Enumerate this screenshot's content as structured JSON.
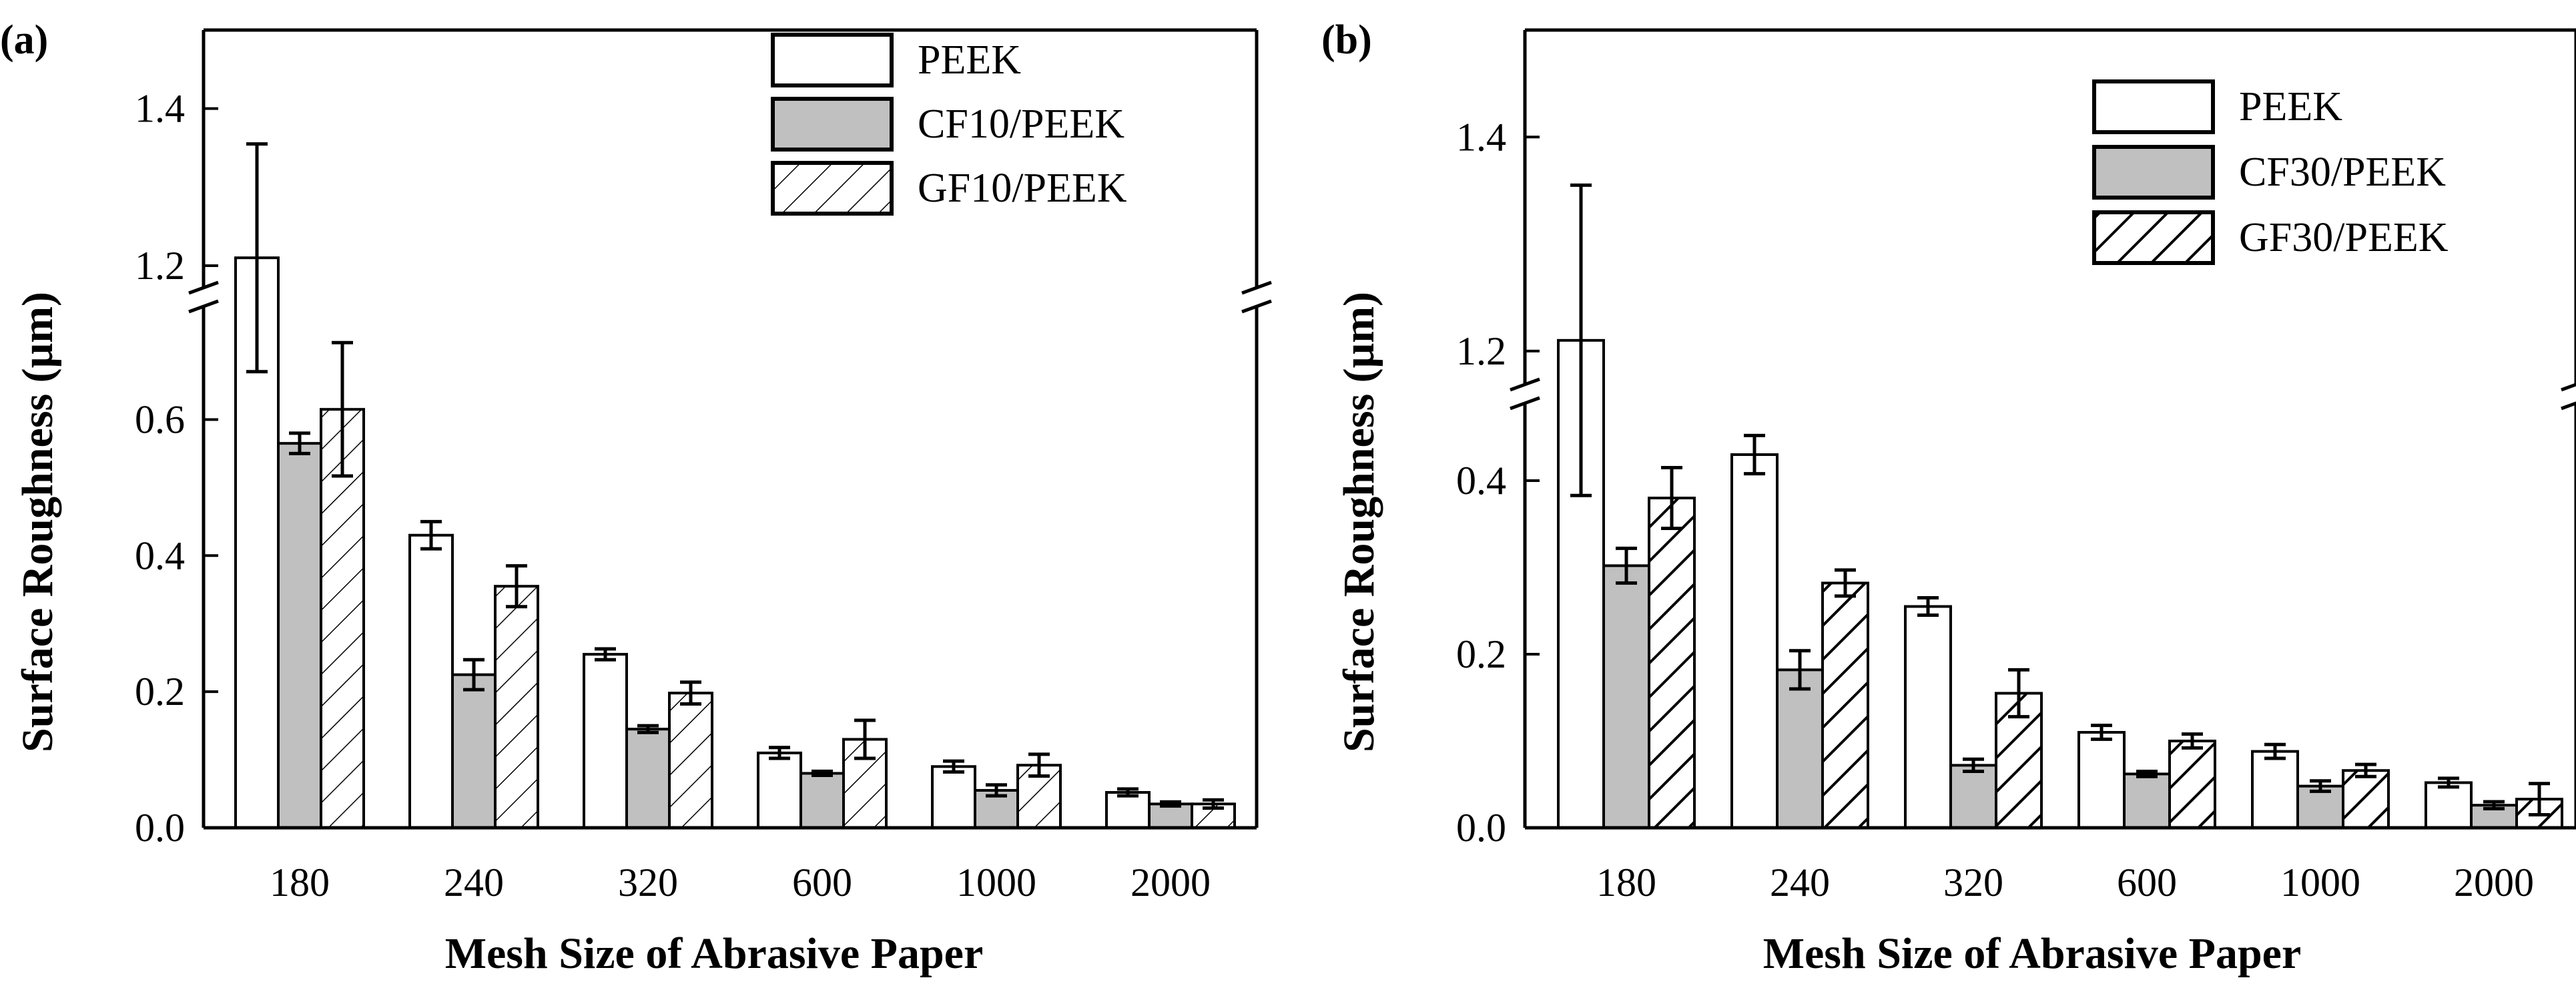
{
  "colors": {
    "peek": "#ffffff",
    "cf": "#c0c0c0",
    "gf": "#ffffff",
    "stroke": "#000000"
  },
  "chart_data": [
    {
      "panel": "(a)",
      "type": "bar",
      "xlabel": "Mesh Size of Abrasive Paper",
      "ylabel": "Surface Roughness (μm)",
      "categories": [
        "180",
        "240",
        "320",
        "600",
        "1000",
        "2000"
      ],
      "y_axis_break": {
        "lower_range": [
          0.0,
          0.78
        ],
        "upper_range": [
          1.16,
          1.5
        ]
      },
      "yticks_lower": [
        "0.0",
        "0.2",
        "0.4",
        "0.6"
      ],
      "yticks_upper": [
        "1.2",
        "1.4"
      ],
      "legend_position": "top-right",
      "series": [
        {
          "name": "PEEK",
          "fill": "white",
          "values": [
            1.21,
            0.43,
            0.255,
            0.11,
            0.09,
            0.052
          ],
          "errors": [
            0.145,
            0.02,
            0.008,
            0.008,
            0.008,
            0.005
          ]
        },
        {
          "name": "CF10/PEEK",
          "fill": "gray",
          "values": [
            0.565,
            0.225,
            0.145,
            0.08,
            0.055,
            0.035
          ],
          "errors": [
            0.015,
            0.022,
            0.005,
            0.003,
            0.008,
            0.003
          ]
        },
        {
          "name": "GF10/PEEK",
          "fill": "hatch",
          "values": [
            0.615,
            0.355,
            0.198,
            0.13,
            0.092,
            0.035
          ],
          "errors": [
            0.098,
            0.03,
            0.016,
            0.028,
            0.016,
            0.006
          ]
        }
      ]
    },
    {
      "panel": "(b)",
      "type": "bar",
      "xlabel": "Mesh Size of Abrasive Paper",
      "ylabel": "Surface Roughness (μm)",
      "categories": [
        "180",
        "240",
        "320",
        "600",
        "1000",
        "2000"
      ],
      "y_axis_break": {
        "lower_range": [
          0.0,
          0.5
        ],
        "upper_range": [
          1.16,
          1.5
        ]
      },
      "yticks_lower": [
        "0.0",
        "0.2",
        "0.4"
      ],
      "yticks_upper": [
        "1.2",
        "1.4"
      ],
      "legend_position": "top-right",
      "series": [
        {
          "name": "PEEK",
          "fill": "white",
          "values": [
            1.21,
            0.43,
            0.255,
            0.11,
            0.088,
            0.052
          ],
          "errors": [
            0.145,
            0.022,
            0.01,
            0.008,
            0.008,
            0.005
          ]
        },
        {
          "name": "CF30/PEEK",
          "fill": "gray",
          "values": [
            0.302,
            0.182,
            0.072,
            0.062,
            0.048,
            0.026
          ],
          "errors": [
            0.02,
            0.022,
            0.007,
            0.003,
            0.006,
            0.004
          ]
        },
        {
          "name": "GF30/PEEK",
          "fill": "hatch",
          "values": [
            0.38,
            0.282,
            0.155,
            0.1,
            0.066,
            0.033
          ],
          "errors": [
            0.035,
            0.015,
            0.027,
            0.008,
            0.007,
            0.018
          ]
        }
      ]
    }
  ]
}
